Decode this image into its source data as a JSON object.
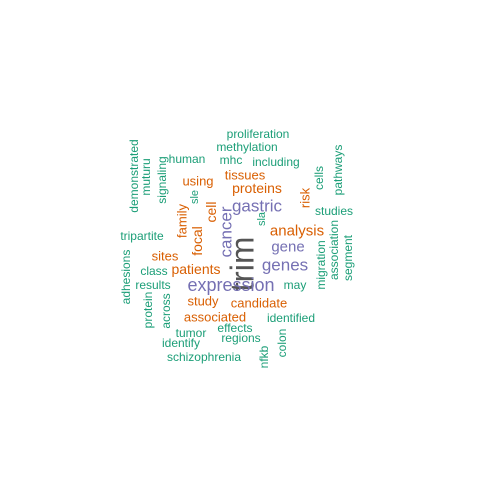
{
  "palette": {
    "teal": "#1b9e77",
    "orange": "#d95f02",
    "purple": "#7570b3",
    "gray": "#555555"
  },
  "words": [
    {
      "text": "trim",
      "color": "gray"
    },
    {
      "text": "expression",
      "color": "purple"
    },
    {
      "text": "cancer",
      "color": "purple"
    },
    {
      "text": "gastric",
      "color": "purple"
    },
    {
      "text": "genes",
      "color": "purple"
    },
    {
      "text": "gene",
      "color": "purple"
    },
    {
      "text": "analysis",
      "color": "orange"
    },
    {
      "text": "patients",
      "color": "orange"
    },
    {
      "text": "cell",
      "color": "orange"
    },
    {
      "text": "focal",
      "color": "orange"
    },
    {
      "text": "proteins",
      "color": "orange"
    },
    {
      "text": "tissues",
      "color": "orange"
    },
    {
      "text": "risk",
      "color": "orange"
    },
    {
      "text": "sites",
      "color": "orange"
    },
    {
      "text": "using",
      "color": "orange"
    },
    {
      "text": "family",
      "color": "orange"
    },
    {
      "text": "study",
      "color": "orange"
    },
    {
      "text": "candidate",
      "color": "orange"
    },
    {
      "text": "associated",
      "color": "orange"
    },
    {
      "text": "proliferation",
      "color": "teal"
    },
    {
      "text": "methylation",
      "color": "teal"
    },
    {
      "text": "human",
      "color": "teal"
    },
    {
      "text": "mhc",
      "color": "teal"
    },
    {
      "text": "including",
      "color": "teal"
    },
    {
      "text": "demonstrated",
      "color": "teal"
    },
    {
      "text": "muturu",
      "color": "teal"
    },
    {
      "text": "signaling",
      "color": "teal"
    },
    {
      "text": "sle",
      "color": "teal"
    },
    {
      "text": "pathways",
      "color": "teal"
    },
    {
      "text": "cells",
      "color": "teal"
    },
    {
      "text": "studies",
      "color": "teal"
    },
    {
      "text": "sla",
      "color": "teal"
    },
    {
      "text": "association",
      "color": "teal"
    },
    {
      "text": "segment",
      "color": "teal"
    },
    {
      "text": "tripartite",
      "color": "teal"
    },
    {
      "text": "migration",
      "color": "teal"
    },
    {
      "text": "adhesions",
      "color": "teal"
    },
    {
      "text": "class",
      "color": "teal"
    },
    {
      "text": "results",
      "color": "teal"
    },
    {
      "text": "may",
      "color": "teal"
    },
    {
      "text": "protein",
      "color": "teal"
    },
    {
      "text": "across",
      "color": "teal"
    },
    {
      "text": "tumor",
      "color": "teal"
    },
    {
      "text": "effects",
      "color": "teal"
    },
    {
      "text": "identified",
      "color": "teal"
    },
    {
      "text": "regions",
      "color": "teal"
    },
    {
      "text": "identify",
      "color": "teal"
    },
    {
      "text": "nfkb",
      "color": "teal"
    },
    {
      "text": "colon",
      "color": "teal"
    },
    {
      "text": "schizophrenia",
      "color": "teal"
    }
  ]
}
